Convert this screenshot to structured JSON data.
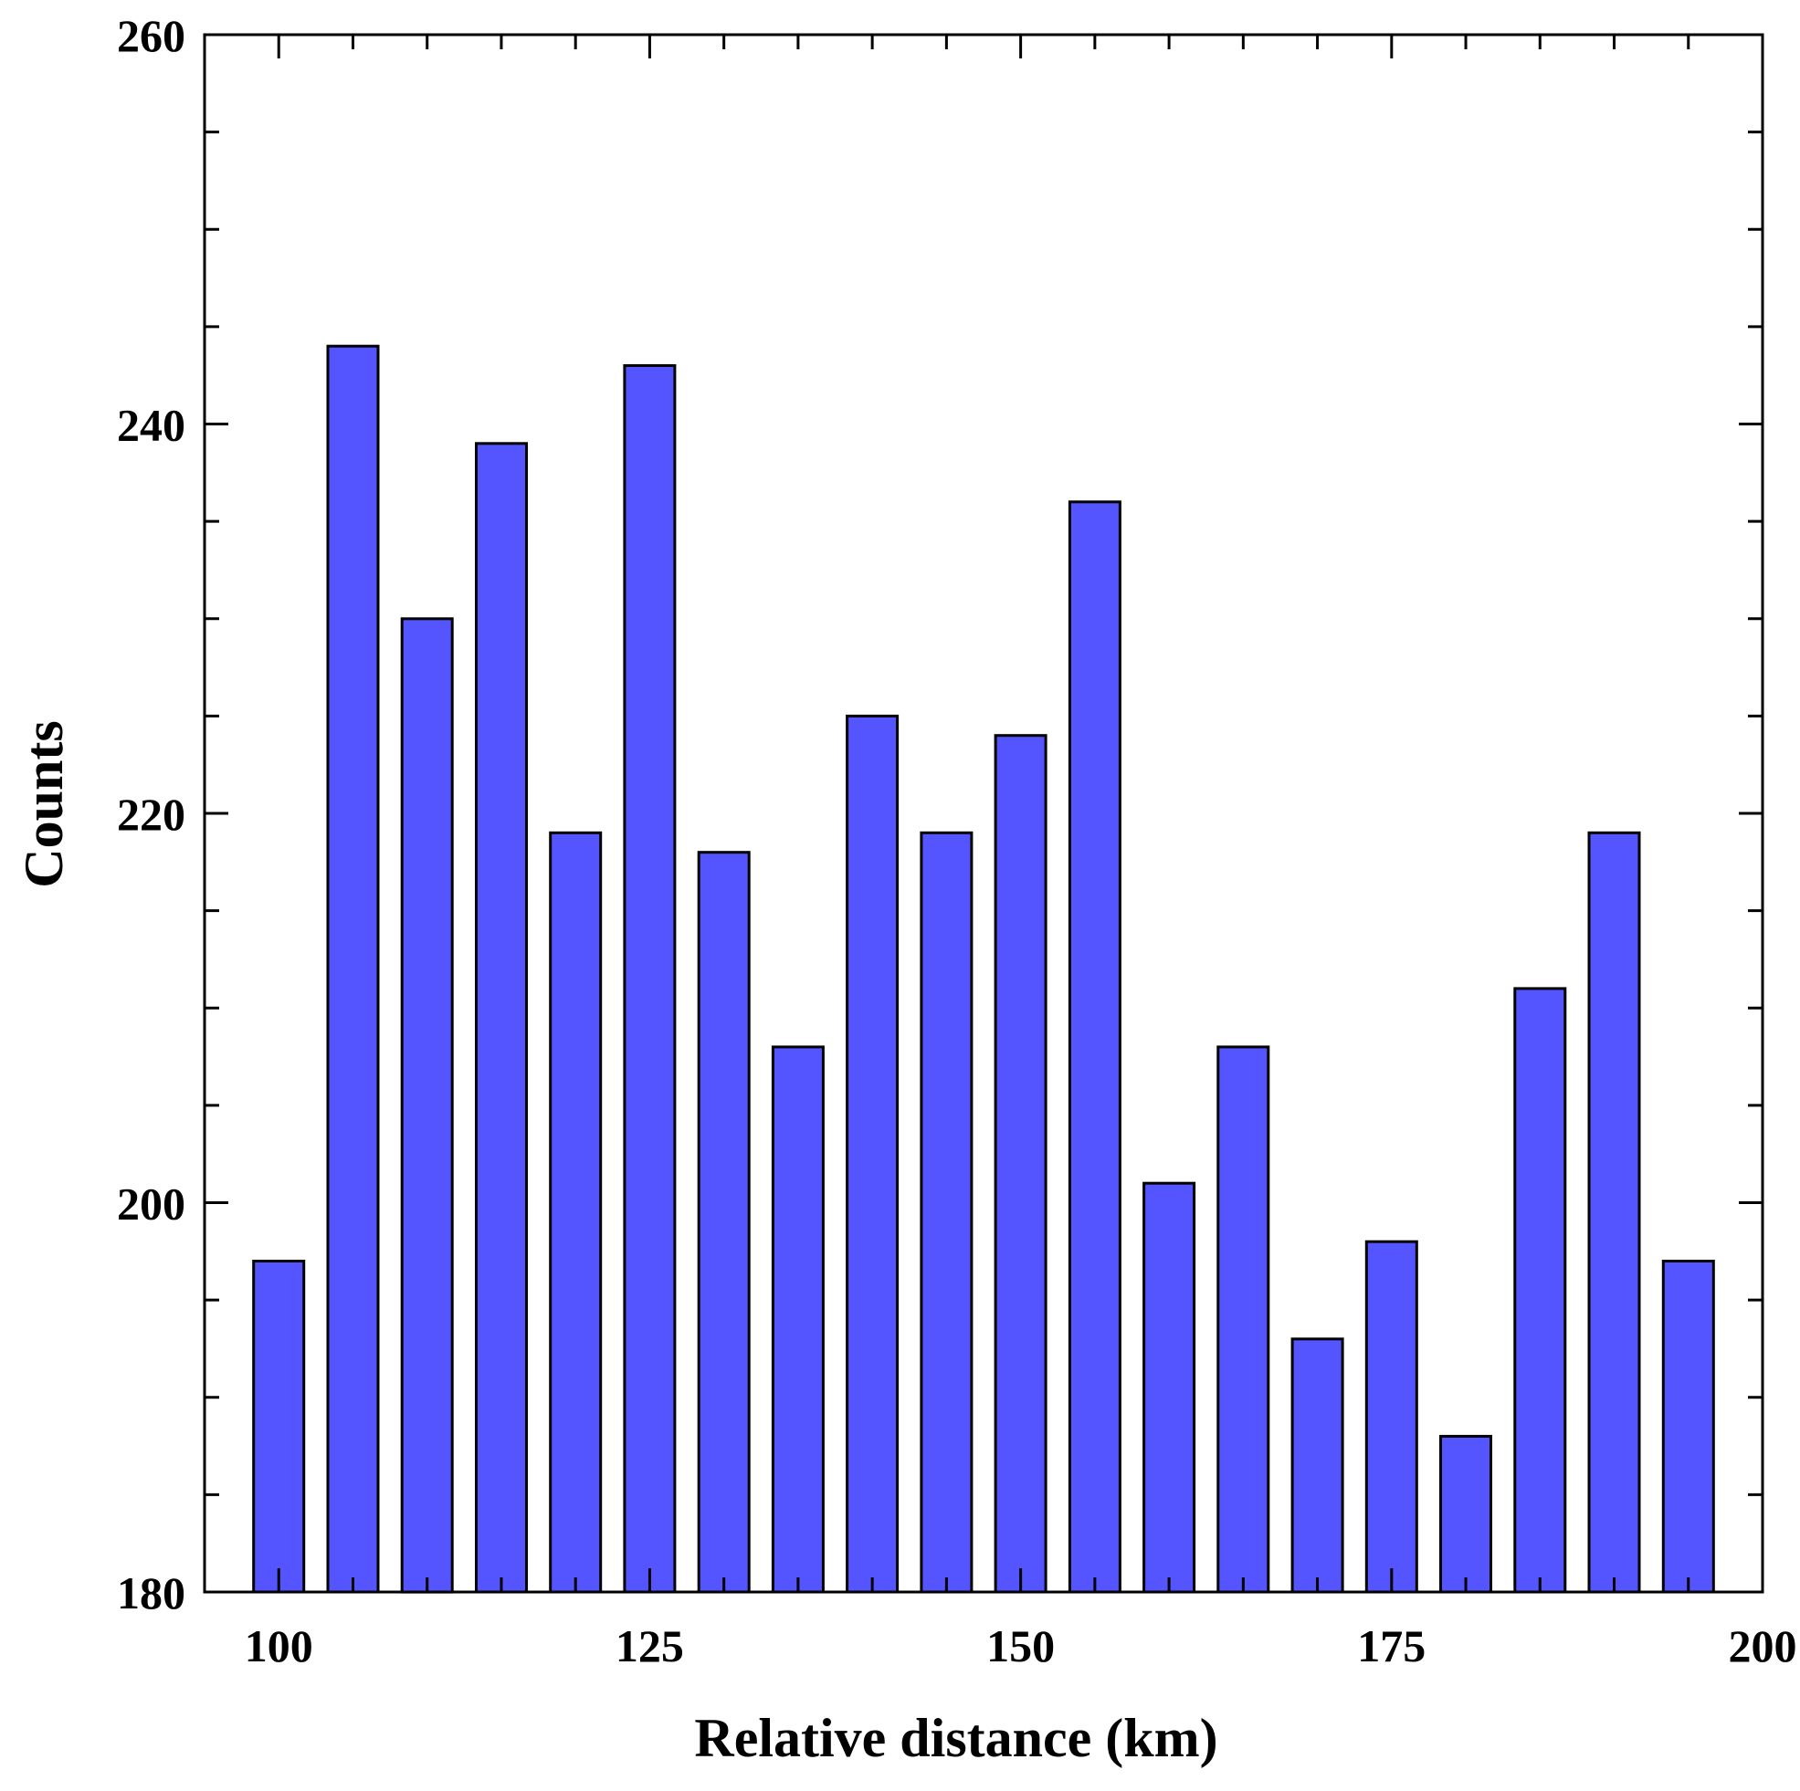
{
  "chart_data": {
    "type": "bar",
    "xlabel": "Relative distance (km)",
    "ylabel": "Counts",
    "x": [
      100,
      105,
      110,
      115,
      120,
      125,
      130,
      135,
      140,
      145,
      150,
      155,
      160,
      165,
      170,
      175,
      180,
      185,
      190,
      195
    ],
    "values": [
      197,
      244,
      230,
      239,
      219,
      243,
      218,
      208,
      225,
      219,
      224,
      236,
      201,
      208,
      193,
      198,
      188,
      211,
      219,
      197
    ],
    "xlim": [
      95,
      200
    ],
    "ylim": [
      180,
      260
    ],
    "x_ticks": [
      "100",
      "125",
      "150",
      "175",
      "200"
    ],
    "y_ticks": [
      "180",
      "200",
      "220",
      "240",
      "260"
    ],
    "bar_color": "#5555ff",
    "bar_edge_color": "#000000",
    "grid": false,
    "legend": "none"
  }
}
